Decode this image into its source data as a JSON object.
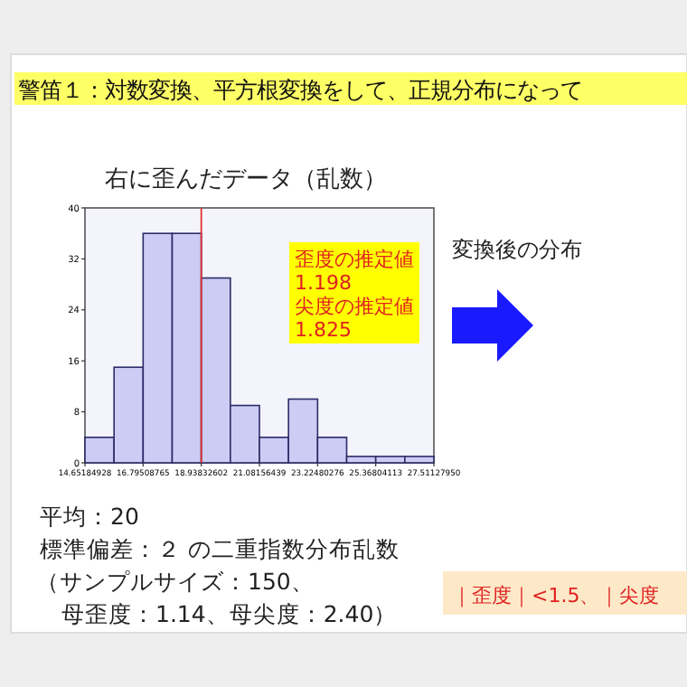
{
  "chart_data": {
    "type": "histogram",
    "title": "警笛１：対数変換、平方根変換をして、正規分布になって",
    "subtitle": "右に歪んだデータ（乱数）",
    "bins": [
      14.65184928,
      15.72346847,
      16.79508765,
      17.86670684,
      18.93832602,
      20.00994521,
      21.08156439,
      22.15318358,
      23.22480276,
      24.29642195,
      25.36804113,
      26.43966032,
      27.5112795
    ],
    "values": [
      4,
      15,
      36,
      36,
      29,
      9,
      4,
      10,
      4,
      1,
      1,
      1
    ],
    "color": "#ccccf5",
    "xlim": [
      14.65184928,
      27.5112795
    ],
    "xticks": [
      14.65184928,
      16.79508765,
      {
        "value": 18.93832602,
        "label": "18.93832602"
      },
      21.08156439,
      {
        "value": 23.22480276,
        "label": "23.22480276"
      },
      25.36804113,
      {
        "value": 27.5112795,
        "label": "27.51127950"
      }
    ],
    "ylim": [
      0,
      40
    ],
    "yticks": [
      0,
      8,
      16,
      24,
      32,
      40
    ],
    "ref_lines": [
      {
        "axis": "x",
        "value": 18.93832602,
        "color": "#e03030"
      }
    ],
    "annotations": [
      "歪度の推定値",
      "1.198",
      "尖度の推定値",
      "1.825",
      "変換後の分布",
      "平均：20",
      "標準偏差：２ の二重指数分布乱数",
      "（サンプルサイズ：150、",
      "母歪度：1.14、母尖度：2.40）",
      "｜歪度｜<1.5、｜尖度"
    ]
  }
}
